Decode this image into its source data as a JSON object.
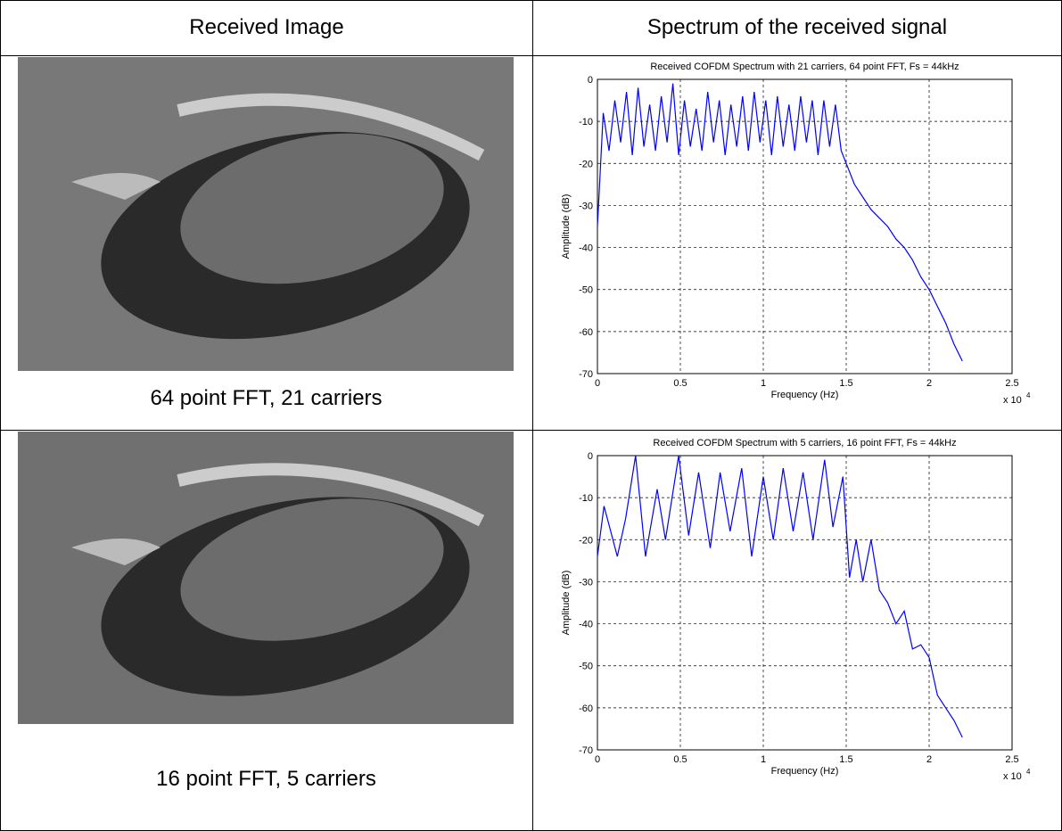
{
  "table": {
    "headers": [
      "Received Image",
      "Spectrum of the received signal"
    ],
    "captions": [
      "64 point FFT, 21 carriers",
      "16 point FFT, 5 carriers"
    ]
  },
  "chart_data": [
    {
      "type": "line",
      "title": "Received COFDM Spectrum with 21 carriers, 64 point FFT, Fs = 44kHz",
      "xlabel": "Frequency (Hz)",
      "ylabel": "Amplitude (dB)",
      "xscale_label": "x 10",
      "xscale_exponent": "4",
      "color": "#0000ff",
      "grid": true,
      "xlim": [
        0,
        25000
      ],
      "ylim": [
        -70,
        0
      ],
      "xticks": [
        0,
        {
          "value": 5000,
          "label": "0.5"
        },
        {
          "value": 10000,
          "label": "1"
        },
        {
          "value": 15000,
          "label": "1.5"
        },
        {
          "value": 20000,
          "label": "2"
        },
        {
          "value": 25000,
          "label": "2.5"
        }
      ],
      "yticks": [
        0,
        -10,
        -20,
        -30,
        -40,
        -50,
        -60,
        -70
      ],
      "x": [
        0,
        350,
        700,
        1050,
        1400,
        1750,
        2100,
        2450,
        2800,
        3150,
        3500,
        3850,
        4200,
        4550,
        4900,
        5250,
        5600,
        5950,
        6300,
        6650,
        7000,
        7350,
        7700,
        8050,
        8400,
        8750,
        9100,
        9450,
        9800,
        10150,
        10500,
        10850,
        11200,
        11550,
        11900,
        12250,
        12600,
        12950,
        13300,
        13650,
        14000,
        14350,
        14700,
        15000,
        15500,
        16000,
        16500,
        17000,
        17500,
        18000,
        18500,
        19000,
        19500,
        20000,
        20500,
        21000,
        21500,
        22000
      ],
      "values": [
        -35,
        -8,
        -17,
        -5,
        -15,
        -3,
        -18,
        -2,
        -16,
        -6,
        -17,
        -4,
        -15,
        -1,
        -18,
        -5,
        -16,
        -7,
        -17,
        -3,
        -15,
        -5,
        -18,
        -6,
        -16,
        -4,
        -17,
        -3,
        -15,
        -5,
        -18,
        -4,
        -16,
        -6,
        -17,
        -4,
        -15,
        -5,
        -18,
        -5,
        -16,
        -6,
        -17,
        -20,
        -25,
        -28,
        -31,
        -33,
        -35,
        -38,
        -40,
        -43,
        -47,
        -50,
        -54,
        -58,
        -63,
        -67
      ]
    },
    {
      "type": "line",
      "title": "Received COFDM Spectrum with 5 carriers, 16 point FFT, Fs = 44kHz",
      "xlabel": "Frequency (Hz)",
      "ylabel": "Amplitude (dB)",
      "xscale_label": "x 10",
      "xscale_exponent": "4",
      "color": "#0000ff",
      "grid": true,
      "xlim": [
        0,
        25000
      ],
      "ylim": [
        -70,
        0
      ],
      "xticks": [
        0,
        {
          "value": 5000,
          "label": "0.5"
        },
        {
          "value": 10000,
          "label": "1"
        },
        {
          "value": 15000,
          "label": "1.5"
        },
        {
          "value": 20000,
          "label": "2"
        },
        {
          "value": 25000,
          "label": "2.5"
        }
      ],
      "yticks": [
        0,
        -10,
        -20,
        -30,
        -40,
        -50,
        -60,
        -70
      ],
      "x": [
        0,
        400,
        800,
        1200,
        1700,
        2300,
        2900,
        3600,
        4100,
        4900,
        5500,
        6100,
        6800,
        7400,
        8000,
        8700,
        9300,
        10000,
        10600,
        11200,
        11800,
        12400,
        13000,
        13700,
        14200,
        14800,
        15200,
        15600,
        16000,
        16500,
        17000,
        17500,
        18000,
        18500,
        19000,
        19500,
        20000,
        20500,
        21000,
        21500,
        22000
      ],
      "values": [
        -24,
        -12,
        -18,
        -24,
        -15,
        0,
        -24,
        -8,
        -20,
        0,
        -19,
        -4,
        -22,
        -4,
        -18,
        -3,
        -24,
        -5,
        -20,
        -3,
        -18,
        -4,
        -20,
        -1,
        -17,
        -5,
        -29,
        -20,
        -30,
        -20,
        -32,
        -35,
        -40,
        -37,
        -46,
        -45,
        -48,
        -57,
        -60,
        -63,
        -67
      ]
    }
  ]
}
